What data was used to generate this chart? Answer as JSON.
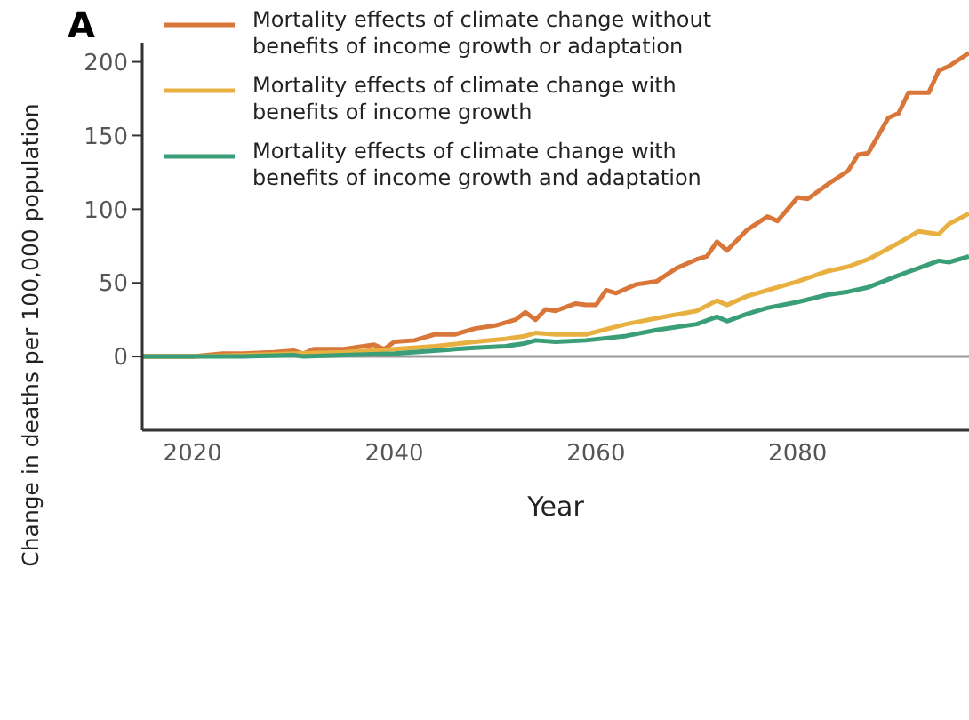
{
  "chart_data": {
    "type": "line",
    "title": "A",
    "xlabel": "Year",
    "ylabel": "Change in deaths per 100,000 population",
    "xlim": [
      2015,
      2097
    ],
    "xticks": [
      2020,
      2040,
      2060,
      2080
    ],
    "ylim": [
      -50,
      213
    ],
    "yticks": [
      0,
      50,
      100,
      150,
      200
    ],
    "legend": "top left",
    "marker": "none",
    "line_style": "solid",
    "ref_lines": [
      {
        "axis": "y",
        "value": 0,
        "color": "#999999"
      }
    ],
    "series": [
      {
        "name": "Mortality effects of climate change without benefits of income growth or adaptation",
        "color": "#d9773a",
        "x": [
          2015,
          2020,
          2023,
          2025,
          2028,
          2030,
          2031,
          2032,
          2035,
          2038,
          2039,
          2040,
          2042,
          2044,
          2046,
          2048,
          2050,
          2052,
          2053,
          2054,
          2055,
          2056,
          2058,
          2059,
          2060,
          2061,
          2062,
          2064,
          2065,
          2066,
          2068,
          2070,
          2071,
          2072,
          2073,
          2075,
          2077,
          2078,
          2080,
          2081,
          2083,
          2085,
          2086,
          2087,
          2088,
          2089,
          2090,
          2091,
          2093,
          2094,
          2095,
          2097
        ],
        "values": [
          0,
          0,
          2,
          2,
          3,
          4,
          2,
          5,
          5,
          8,
          5,
          10,
          11,
          15,
          15,
          19,
          21,
          25,
          30,
          25,
          32,
          31,
          36,
          35,
          35,
          45,
          43,
          49,
          50,
          51,
          60,
          66,
          68,
          78,
          72,
          86,
          95,
          92,
          108,
          107,
          117,
          126,
          137,
          138,
          150,
          162,
          165,
          179,
          179,
          194,
          197,
          206
        ]
      },
      {
        "name": "Mortality effects of climate change with benefits of income growth",
        "color": "#e8b040",
        "x": [
          2015,
          2020,
          2025,
          2030,
          2035,
          2040,
          2044,
          2048,
          2051,
          2053,
          2054,
          2056,
          2059,
          2063,
          2066,
          2070,
          2072,
          2073,
          2075,
          2077,
          2080,
          2083,
          2085,
          2087,
          2090,
          2092,
          2094,
          2095,
          2097
        ],
        "values": [
          0,
          0,
          1,
          2,
          3,
          5,
          7,
          10,
          12,
          14,
          16,
          15,
          15,
          22,
          26,
          31,
          38,
          35,
          41,
          45,
          51,
          58,
          61,
          66,
          77,
          85,
          83,
          90,
          97
        ]
      },
      {
        "name": "Mortality effects of climate change with benefits of income growth and adaptation",
        "color": "#3a9e78",
        "x": [
          2015,
          2020,
          2025,
          2030,
          2031,
          2035,
          2040,
          2044,
          2048,
          2051,
          2053,
          2054,
          2056,
          2059,
          2063,
          2066,
          2070,
          2072,
          2073,
          2075,
          2077,
          2080,
          2083,
          2085,
          2087,
          2090,
          2092,
          2094,
          2095,
          2097
        ],
        "values": [
          0,
          0,
          0,
          1,
          0,
          1,
          2,
          4,
          6,
          7,
          9,
          11,
          10,
          11,
          14,
          18,
          22,
          27,
          24,
          29,
          33,
          37,
          42,
          44,
          47,
          55,
          60,
          65,
          64,
          68
        ]
      }
    ]
  }
}
